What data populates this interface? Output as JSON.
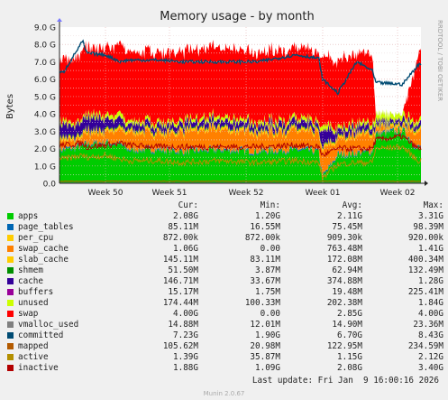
{
  "chart_data": {
    "type": "area",
    "title": "Memory usage - by month",
    "ylabel": "Bytes",
    "side_label": "RRDTOOL / TOBI OETIKER",
    "ylim": [
      0,
      9.0
    ],
    "yticks": [
      "0.0",
      "1.0 G",
      "2.0 G",
      "3.0 G",
      "4.0 G",
      "5.0 G",
      "6.0 G",
      "7.0 G",
      "8.0 G",
      "9.0 G"
    ],
    "xticks": [
      "Week 50",
      "Week 51",
      "Week 52",
      "Week 01",
      "Week 02"
    ],
    "grid": true,
    "stack_order": [
      "apps",
      "page_tables",
      "per_cpu",
      "swap_cache",
      "slab_cache",
      "shmem",
      "cache",
      "buffers",
      "unused",
      "swap"
    ],
    "series": [
      {
        "name": "apps",
        "color": "#00cc00",
        "cur": "2.08G",
        "min": "1.20G",
        "avg": "2.11G",
        "max": "3.31G"
      },
      {
        "name": "page_tables",
        "color": "#0066b3",
        "cur": "85.11M",
        "min": "16.55M",
        "avg": "75.45M",
        "max": "98.39M"
      },
      {
        "name": "per_cpu",
        "color": "#ffcc00",
        "cur": "872.00k",
        "min": "872.00k",
        "avg": "909.30k",
        "max": "920.00k"
      },
      {
        "name": "swap_cache",
        "color": "#ff8000",
        "cur": "1.06G",
        "min": "0.00",
        "avg": "763.48M",
        "max": "1.41G"
      },
      {
        "name": "slab_cache",
        "color": "#ffcc00",
        "cur": "145.11M",
        "min": "83.11M",
        "avg": "172.08M",
        "max": "400.34M"
      },
      {
        "name": "shmem",
        "color": "#008f00",
        "cur": "51.50M",
        "min": "3.87M",
        "avg": "62.94M",
        "max": "132.49M"
      },
      {
        "name": "cache",
        "color": "#330099",
        "cur": "146.71M",
        "min": "33.67M",
        "avg": "374.88M",
        "max": "1.28G"
      },
      {
        "name": "buffers",
        "color": "#990099",
        "cur": "15.17M",
        "min": "1.75M",
        "avg": "19.48M",
        "max": "225.41M"
      },
      {
        "name": "unused",
        "color": "#ccff00",
        "cur": "174.44M",
        "min": "100.33M",
        "avg": "202.38M",
        "max": "1.84G"
      },
      {
        "name": "swap",
        "color": "#ff0000",
        "cur": "4.00G",
        "min": "0.00",
        "avg": "2.85G",
        "max": "4.00G"
      },
      {
        "name": "vmalloc_used",
        "color": "#808080",
        "cur": "14.88M",
        "min": "12.01M",
        "avg": "14.90M",
        "max": "23.36M"
      },
      {
        "name": "committed",
        "color": "#004b73",
        "cur": "7.23G",
        "min": "1.90G",
        "avg": "6.70G",
        "max": "8.43G"
      },
      {
        "name": "mapped",
        "color": "#b35a00",
        "cur": "105.62M",
        "min": "20.98M",
        "avg": "122.95M",
        "max": "234.59M"
      },
      {
        "name": "active",
        "color": "#b38f00",
        "cur": "1.39G",
        "min": "35.87M",
        "avg": "1.15G",
        "max": "2.12G"
      },
      {
        "name": "inactive",
        "color": "#b30000",
        "cur": "1.88G",
        "min": "1.09G",
        "avg": "2.08G",
        "max": "3.40G"
      }
    ],
    "profiles": {
      "week_positions": [
        0,
        1,
        2,
        3,
        4
      ],
      "knots_week": [
        -0.9,
        -0.55,
        -0.3,
        -0.25,
        0.0,
        0.2,
        0.3,
        0.7,
        1.0,
        1.5,
        2.0,
        2.5,
        2.8,
        2.85,
        3.05,
        3.3,
        3.5,
        3.55,
        3.9,
        4.1,
        4.35
      ],
      "apps_G": [
        1.8,
        1.9,
        2.1,
        2.2,
        2.3,
        2.2,
        1.9,
        1.9,
        1.8,
        1.9,
        1.8,
        1.9,
        1.8,
        0.3,
        1.6,
        1.7,
        1.8,
        2.8,
        3.0,
        2.0,
        2.1
      ],
      "swap_cache_G": [
        0.4,
        0.4,
        0.5,
        0.6,
        0.5,
        0.7,
        0.9,
        0.9,
        1.0,
        1.1,
        1.0,
        1.0,
        1.0,
        1.4,
        0.9,
        0.9,
        0.9,
        0.2,
        0.2,
        0.9,
        1.1
      ],
      "cache_G": [
        0.6,
        0.7,
        0.6,
        0.7,
        0.6,
        0.4,
        0.3,
        0.3,
        0.3,
        0.3,
        0.3,
        0.3,
        0.3,
        0.9,
        0.3,
        0.3,
        0.3,
        0.2,
        0.2,
        0.2,
        0.15
      ],
      "unused_G": [
        0.1,
        0.2,
        0.15,
        0.2,
        0.2,
        0.3,
        0.2,
        0.2,
        0.2,
        0.2,
        0.2,
        0.2,
        0.2,
        0.3,
        0.2,
        0.2,
        0.2,
        0.4,
        0.3,
        0.2,
        0.17
      ],
      "swap_G": [
        3.3,
        3.5,
        3.8,
        3.8,
        3.8,
        4.0,
        4.0,
        4.0,
        4.0,
        4.0,
        4.0,
        4.0,
        4.0,
        4.0,
        3.8,
        4.0,
        4.0,
        0.0,
        0.0,
        3.8,
        4.0
      ],
      "committed_G": [
        6.2,
        6.4,
        8.2,
        7.5,
        7.4,
        7.0,
        7.1,
        7.1,
        7.0,
        7.0,
        7.0,
        7.4,
        7.2,
        6.0,
        5.2,
        7.0,
        6.5,
        5.8,
        5.7,
        6.8,
        7.3
      ],
      "inactive_G": [
        2.1,
        2.2,
        2.3,
        2.1,
        2.2,
        2.3,
        2.2,
        2.1,
        2.1,
        2.1,
        2.1,
        2.2,
        2.1,
        1.6,
        2.0,
        2.0,
        2.0,
        2.5,
        2.7,
        2.0,
        1.9
      ],
      "active_G": [
        1.5,
        1.4,
        1.6,
        1.5,
        1.6,
        1.4,
        1.3,
        1.3,
        1.2,
        1.3,
        1.2,
        1.3,
        1.2,
        0.3,
        1.1,
        1.2,
        1.2,
        2.0,
        2.1,
        1.3,
        1.4
      ]
    }
  },
  "legend": {
    "headers": {
      "cur": "Cur:",
      "min": "Min:",
      "avg": "Avg:",
      "max": "Max:"
    }
  },
  "footer": {
    "last_update": "Last update: Fri Jan  9 16:00:16 2026",
    "generator": "Munin 2.0.67"
  }
}
